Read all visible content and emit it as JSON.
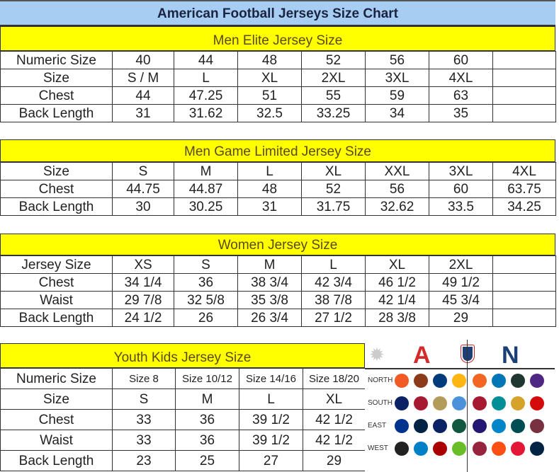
{
  "title": "American Football Jerseys Size Chart",
  "colors": {
    "title_bg": "#a8cdf3",
    "section_header_bg": "#ffff00",
    "afc": "#d42a2a",
    "nfc": "#1d3f78"
  },
  "men_elite": {
    "header": "Men Elite Jersey Size",
    "rows": [
      [
        "Numeric Size",
        "40",
        "44",
        "48",
        "52",
        "56",
        "60",
        ""
      ],
      [
        "Size",
        "S / M",
        "L",
        "XL",
        "2XL",
        "3XL",
        "4XL",
        ""
      ],
      [
        "Chest",
        "44",
        "47.25",
        "51",
        "55",
        "59",
        "63",
        ""
      ],
      [
        "Back Length",
        "31",
        "31.62",
        "32.5",
        "33.25",
        "34",
        "35",
        ""
      ]
    ]
  },
  "men_game": {
    "header": "Men Game Limited Jersey Size",
    "rows": [
      [
        "Size",
        "S",
        "M",
        "L",
        "XL",
        "XXL",
        "3XL",
        "4XL"
      ],
      [
        "Chest",
        "44.75",
        "44.87",
        "48",
        "52",
        "56",
        "60",
        "63.75"
      ],
      [
        "Back Length",
        "30",
        "30.25",
        "31",
        "31.75",
        "32.62",
        "33.5",
        "34.25"
      ]
    ]
  },
  "women": {
    "header": "Women Jersey Size",
    "rows": [
      [
        "Jersey Size",
        "XS",
        "S",
        "M",
        "L",
        "XL",
        "2XL",
        ""
      ],
      [
        "Chest",
        "34 1/4",
        "36",
        "38 3/4",
        "42 3/4",
        "46 1/2",
        "49 1/2",
        ""
      ],
      [
        "Waist",
        "29 7/8",
        "32 5/8",
        "35 3/8",
        "38 7/8",
        "42 1/4",
        "45 3/4",
        ""
      ],
      [
        "Back Length",
        "24 1/2",
        "26",
        "26 3/4",
        "27 1/2",
        "28 3/8",
        "29",
        ""
      ]
    ]
  },
  "youth": {
    "header": "Youth Kids Jersey Size",
    "rows": [
      [
        "Numeric Size",
        "Size 8",
        "Size 10/12",
        "Size 14/16",
        "Size 18/20"
      ],
      [
        "Size",
        "S",
        "M",
        "L",
        "XL"
      ],
      [
        "Chest",
        "33",
        "36",
        "39 1/2",
        "42 1/2"
      ],
      [
        "Waist",
        "33",
        "36",
        "39 1/2",
        "42 1/2"
      ],
      [
        "Back Length",
        "23",
        "25",
        "27",
        "29"
      ]
    ]
  },
  "logos": {
    "afc_letter": "A",
    "nfc_letter": "N",
    "divisions": [
      "NORTH",
      "SOUTH",
      "EAST",
      "WEST"
    ],
    "afc_teams": [
      [
        "#f15a24",
        "#8b3a1a",
        "#003b7b",
        "#ffb612"
      ],
      [
        "#0b2265",
        "#a71930",
        "#b39b5a",
        "#4b92db"
      ],
      [
        "#00338d",
        "#002244",
        "#0b2265",
        "#125740"
      ],
      [
        "#222222",
        "#0080c6",
        "#aa0000",
        "#69be28"
      ]
    ],
    "nfc_teams": [
      [
        "#f26522",
        "#0076b6",
        "#203731",
        "#4f2683"
      ],
      [
        "#a71930",
        "#008e97",
        "#d7a22a",
        "#d50a0a"
      ],
      [
        "#241773",
        "#0085ca",
        "#004c54",
        "#773141"
      ],
      [
        "#97233f",
        "#fb4f14",
        "#e31837",
        "#002244"
      ]
    ]
  }
}
